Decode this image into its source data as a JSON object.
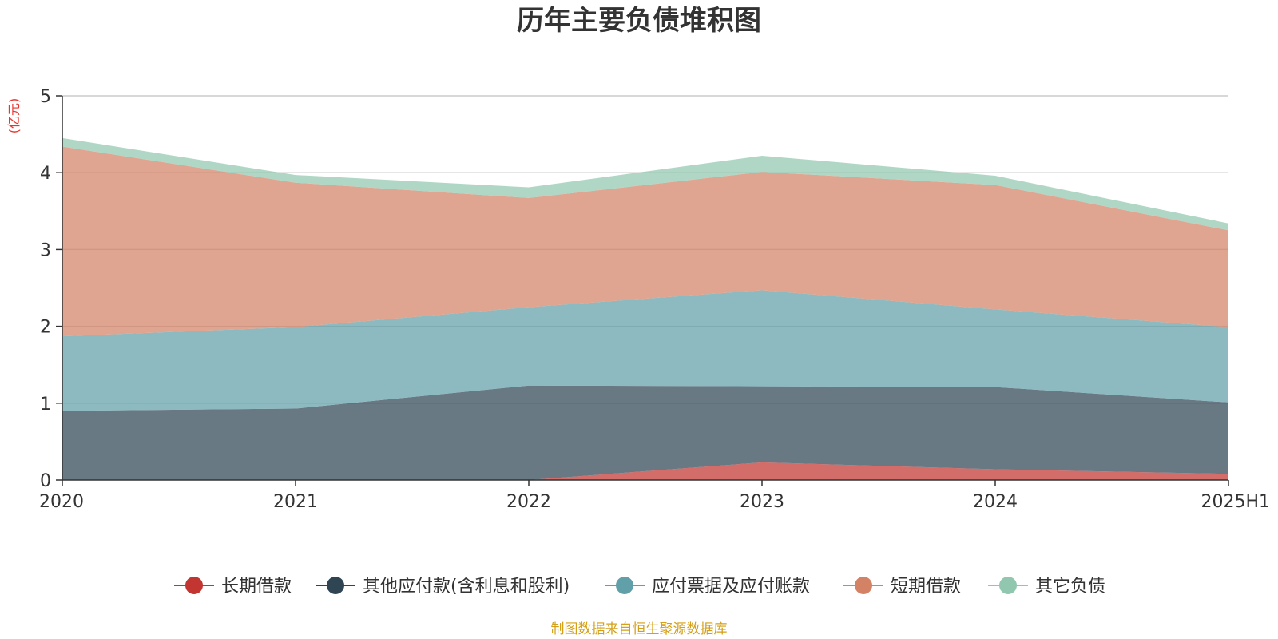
{
  "chart_data": {
    "type": "area",
    "stacked": true,
    "title": "历年主要负债堆积图",
    "unit_label": "(亿元)",
    "categories": [
      "2020",
      "2021",
      "2022",
      "2023",
      "2024",
      "2025H1"
    ],
    "ylim": [
      0,
      5
    ],
    "yticks": [
      "0",
      "1",
      "2",
      "3",
      "4",
      "5"
    ],
    "grid": true,
    "legend_position": "bottom",
    "series": [
      {
        "name": "长期借款",
        "color": "#c23531",
        "values": [
          0,
          0,
          0,
          0.23,
          0.14,
          0.08
        ]
      },
      {
        "name": "其他应付款(含利息和股利)",
        "color": "#2f4554",
        "values": [
          0.9,
          0.93,
          1.23,
          0.99,
          1.07,
          0.93
        ]
      },
      {
        "name": "应付票据及应付账款",
        "color": "#61a0a8",
        "values": [
          0.97,
          1.06,
          1.02,
          1.25,
          1.01,
          0.98
        ]
      },
      {
        "name": "短期借款",
        "color": "#d48265",
        "values": [
          2.47,
          1.88,
          1.42,
          1.54,
          1.62,
          1.26
        ]
      },
      {
        "name": "其它负债",
        "color": "#91c7ae",
        "values": [
          0.11,
          0.1,
          0.14,
          0.21,
          0.12,
          0.09
        ]
      }
    ]
  },
  "source_text": "制图数据来自恒生聚源数据库",
  "colors": {
    "unit": "#e8352e",
    "source": "#d4a017",
    "axis": "#333333",
    "grid": "#cccccc"
  }
}
